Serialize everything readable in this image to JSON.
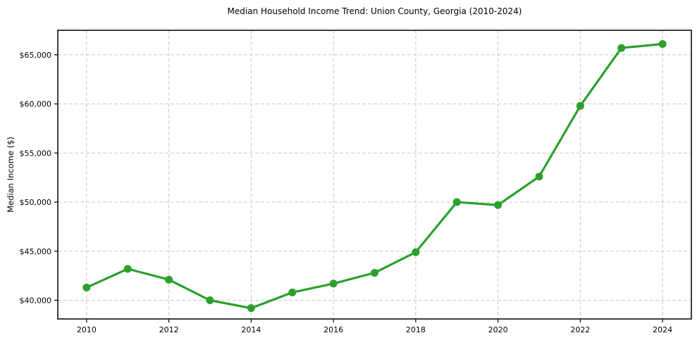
{
  "title": "Median Household Income Trend: Union County, Georgia (2010-2024)",
  "chart_data": {
    "type": "line",
    "title": "Median Household Income Trend: Union County, Georgia (2010-2024)",
    "xlabel": "",
    "ylabel": "Median Income ($)",
    "x": [
      2010,
      2011,
      2012,
      2013,
      2014,
      2015,
      2016,
      2017,
      2018,
      2019,
      2020,
      2021,
      2022,
      2023,
      2024
    ],
    "values": [
      41300,
      43200,
      42100,
      40000,
      39200,
      40800,
      41700,
      42800,
      44900,
      50000,
      49700,
      52600,
      59800,
      65700,
      66100
    ],
    "xlim": [
      2009.3,
      2024.7
    ],
    "ylim": [
      38100,
      67500
    ],
    "xticks": [
      {
        "value": 2010,
        "label": "2010"
      },
      {
        "value": 2012,
        "label": "2012"
      },
      {
        "value": 2014,
        "label": "2014"
      },
      {
        "value": 2016,
        "label": "2016"
      },
      {
        "value": 2018,
        "label": "2018"
      },
      {
        "value": 2020,
        "label": "2020"
      },
      {
        "value": 2022,
        "label": "2022"
      },
      {
        "value": 2024,
        "label": "2024"
      }
    ],
    "yticks": [
      {
        "value": 40000,
        "label": "$40,000"
      },
      {
        "value": 45000,
        "label": "$45,000"
      },
      {
        "value": 50000,
        "label": "$50,000"
      },
      {
        "value": 55000,
        "label": "$55,000"
      },
      {
        "value": 60000,
        "label": "$60,000"
      },
      {
        "value": 65000,
        "label": "$65,000"
      }
    ],
    "grid": true,
    "grid_style": "dashed",
    "legend": "none",
    "marker": "circle",
    "marker_radius": 5.5,
    "line_width": 3.2,
    "colors": {
      "line": "#2ca02c",
      "marker": "#2ca02c",
      "grid": "#c8c8c8",
      "spine": "#000000",
      "text": "#000000",
      "background": "#ffffff"
    }
  }
}
